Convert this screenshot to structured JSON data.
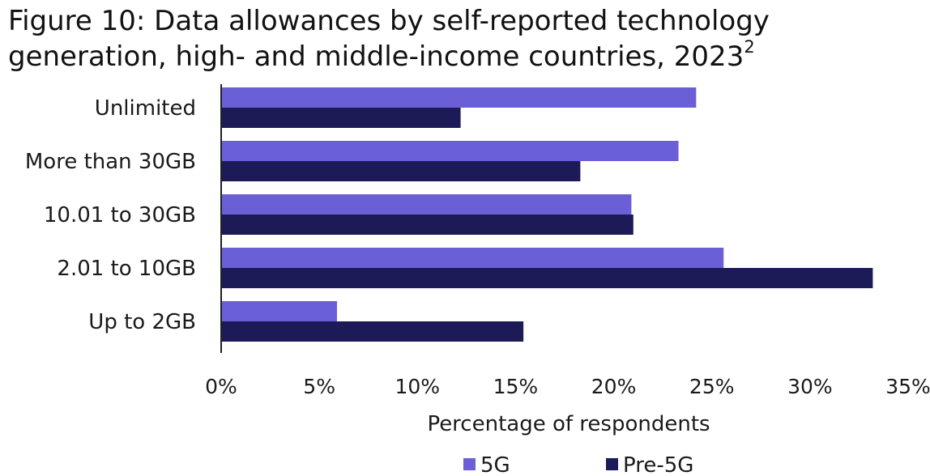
{
  "chart_data": {
    "type": "bar",
    "orientation": "horizontal",
    "title": "Figure 10: Data allowances by self-reported technology generation, high- and middle-income countries, 2023",
    "title_superscript": "2",
    "categories": [
      "Unlimited",
      "More than 30GB",
      "10.01 to 30GB",
      "2.01 to 10GB",
      "Up to 2GB"
    ],
    "series": [
      {
        "name": "5G",
        "color": "#6a5fd6",
        "values": [
          24.2,
          23.3,
          20.9,
          25.6,
          5.9
        ]
      },
      {
        "name": "Pre-5G",
        "color": "#1c1a57",
        "values": [
          12.2,
          18.3,
          21.0,
          33.2,
          15.4
        ]
      }
    ],
    "xlabel": "Percentage of respondents",
    "ylabel": "",
    "xlim": [
      0,
      35
    ],
    "x_ticks": [
      "0%",
      "5%",
      "10%",
      "15%",
      "20%",
      "25%",
      "30%",
      "35%"
    ],
    "x_tick_values": [
      0,
      5,
      10,
      15,
      20,
      25,
      30,
      35
    ],
    "grid": false,
    "legend_position": "bottom-center"
  }
}
